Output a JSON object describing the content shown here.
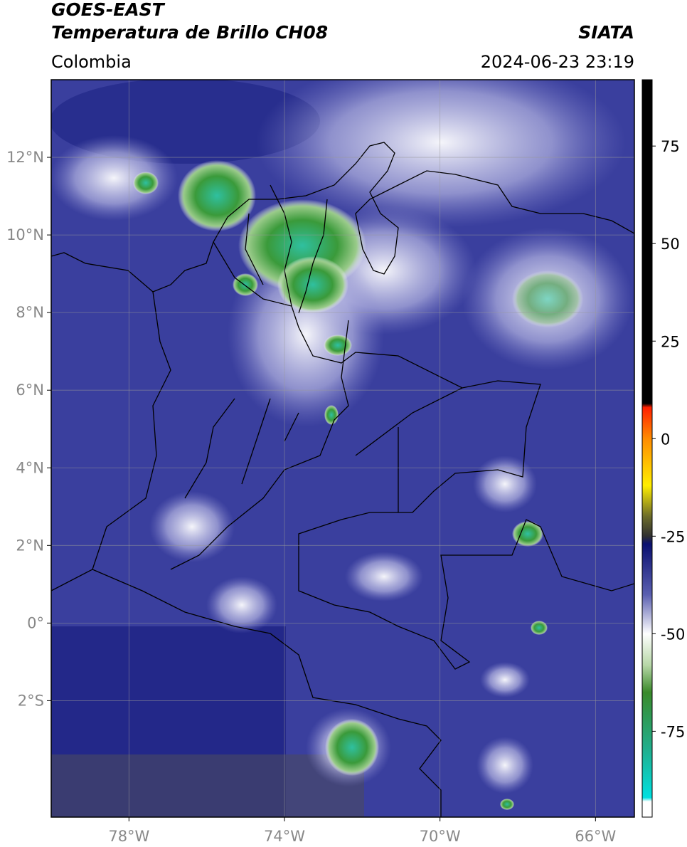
{
  "map": {
    "satellite": "GOES-EAST",
    "title": "Temperatura de Brillo CH08",
    "region": "Colombia",
    "source": "SIATA",
    "timestamp": "2024-06-23 23:19",
    "xlim": [
      -80,
      -65
    ],
    "ylim": [
      -5,
      14
    ],
    "xticks": [
      {
        "value": -78,
        "label": "78°W"
      },
      {
        "value": -74,
        "label": "74°W"
      },
      {
        "value": -70,
        "label": "70°W"
      },
      {
        "value": -66,
        "label": "66°W"
      }
    ],
    "yticks": [
      {
        "value": 12,
        "label": "12°N"
      },
      {
        "value": 10,
        "label": "10°N"
      },
      {
        "value": 8,
        "label": "8°N"
      },
      {
        "value": 6,
        "label": "6°N"
      },
      {
        "value": 4,
        "label": "4°N"
      },
      {
        "value": 2,
        "label": "2°N"
      },
      {
        "value": 0,
        "label": "0°"
      },
      {
        "value": -2,
        "label": "2°S"
      }
    ],
    "grid": true
  },
  "colorbar": {
    "lim": [
      -97,
      92
    ],
    "ticks": [
      75,
      50,
      25,
      0,
      -25,
      -50,
      -75
    ],
    "stops": [
      [
        92,
        "#000000"
      ],
      [
        9,
        "#000000"
      ],
      [
        8,
        "#ff2000"
      ],
      [
        0,
        "#ff8c00"
      ],
      [
        -12,
        "#ffee00"
      ],
      [
        -20,
        "#6b6b2a"
      ],
      [
        -25,
        "#303030"
      ],
      [
        -27,
        "#0a1070"
      ],
      [
        -40,
        "#5a5fb0"
      ],
      [
        -50,
        "#ffffff"
      ],
      [
        -58,
        "#b8d8a8"
      ],
      [
        -65,
        "#3a8a2a"
      ],
      [
        -80,
        "#20b090"
      ],
      [
        -92,
        "#00e0e0"
      ],
      [
        -93,
        "#ffffff"
      ],
      [
        -97,
        "#ffffff"
      ]
    ]
  }
}
